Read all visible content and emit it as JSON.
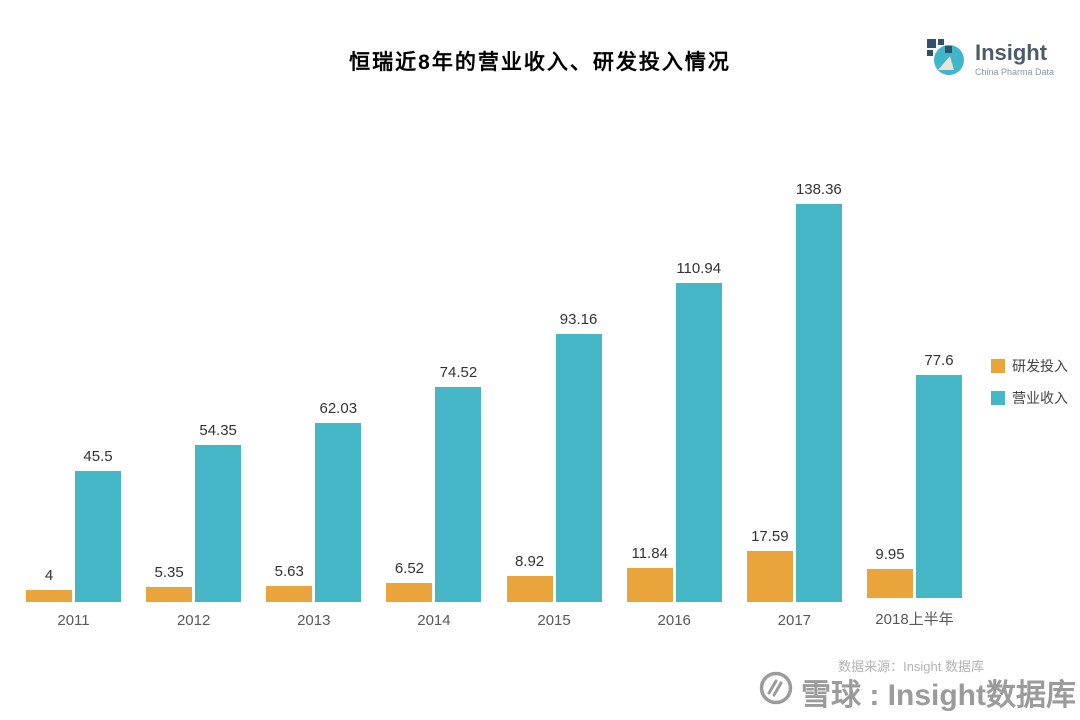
{
  "title": "恒瑞近8年的营业收入、研发投入情况",
  "logo": {
    "name": "Insight",
    "subtitle": "China Pharma Data"
  },
  "legend": [
    {
      "label": "研发投入",
      "color": "#E9A53C"
    },
    {
      "label": "营业收入",
      "color": "#44B6C6"
    }
  ],
  "source": "数据来源：Insight 数据库",
  "watermark": "雪球 : Insight数据库",
  "chart_data": {
    "type": "bar",
    "categories": [
      "2011",
      "2012",
      "2013",
      "2014",
      "2015",
      "2016",
      "2017",
      "2018上半年"
    ],
    "series": [
      {
        "name": "研发投入",
        "color": "#E9A53C",
        "values": [
          4,
          5.35,
          5.63,
          6.52,
          8.92,
          11.84,
          17.59,
          9.95
        ]
      },
      {
        "name": "营业收入",
        "color": "#44B6C6",
        "values": [
          45.5,
          54.35,
          62.03,
          74.52,
          93.16,
          110.94,
          138.36,
          77.6
        ]
      }
    ],
    "ylim": [
      0,
      145
    ],
    "grid": false,
    "legend_position": "right",
    "value_labels": true
  }
}
